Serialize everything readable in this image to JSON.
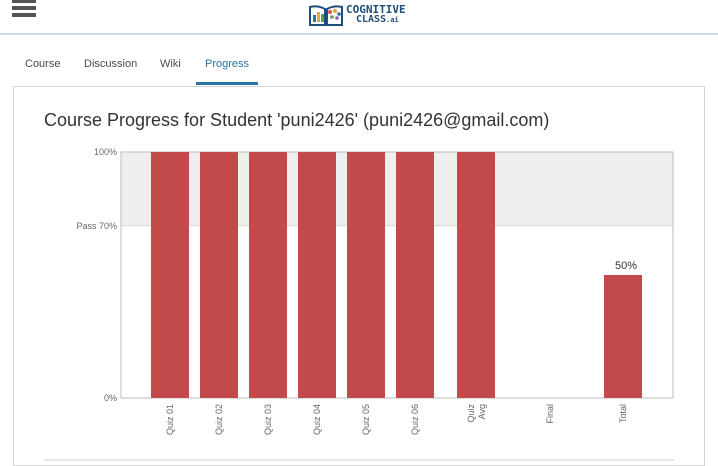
{
  "header": {
    "logo_line1": "COGNITIVE",
    "logo_line2": "CLASS",
    "logo_suffix": ".ai",
    "menu_icon": "hamburger-menu-icon"
  },
  "tabs": [
    {
      "label": "Course"
    },
    {
      "label": "Discussion"
    },
    {
      "label": "Wiki"
    },
    {
      "label": "Progress",
      "active": true
    }
  ],
  "page_title": "Course Progress for Student 'puni2426' (puni2426@gmail.com)",
  "colors": {
    "bar": "#c24a4a",
    "pass_band": "#efefef",
    "accent": "#2a73a8"
  },
  "chart_data": {
    "type": "bar",
    "categories": [
      "Quiz 01",
      "Quiz 02",
      "Quiz 03",
      "Quiz 04",
      "Quiz 05",
      "Quiz 06",
      "Quiz Avg",
      "Final",
      "Total"
    ],
    "values": [
      100,
      100,
      100,
      100,
      100,
      100,
      100,
      0,
      50
    ],
    "data_labels": [
      "",
      "",
      "",
      "",
      "",
      "",
      "",
      "",
      "50%"
    ],
    "y_ticks": [
      {
        "value": 100,
        "label": "100%"
      },
      {
        "value": 70,
        "label": "Pass 70%"
      },
      {
        "value": 0,
        "label": "0%"
      }
    ],
    "ylim": [
      0,
      100
    ],
    "pass_threshold": 70,
    "grid": false,
    "legend": "none"
  }
}
